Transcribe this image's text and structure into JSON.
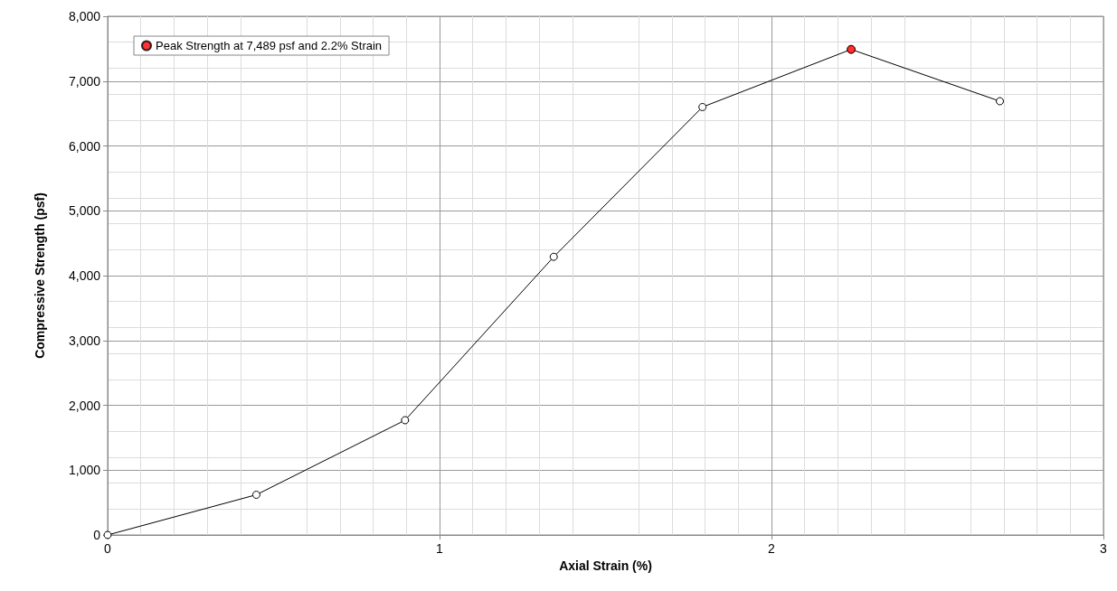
{
  "chart_data": {
    "type": "line",
    "xlabel": "Axial Strain (%)",
    "ylabel": "Compressive Strength (psf)",
    "series": [
      {
        "color": "#000000",
        "x": [
          0,
          0.448,
          0.896,
          1.344,
          1.792,
          2.24,
          2.688
        ],
        "values": [
          0,
          620,
          1770,
          4290,
          6600,
          7489,
          6690
        ]
      },
      {
        "type": "scatter",
        "name": "Peak Strength at 7,489 psf and 2.2% Strain",
        "color": "#ff0000",
        "x": [
          2.24
        ],
        "values": [
          7489
        ]
      }
    ],
    "xlim": [
      0,
      3
    ],
    "xticks": [
      0,
      1,
      2,
      3
    ],
    "ylim": [
      0,
      8000
    ],
    "yticks": [
      0,
      {
        "value": 1000,
        "label": "1,000"
      },
      {
        "value": 2000,
        "label": "2,000"
      },
      {
        "value": 3000,
        "label": "3,000"
      },
      {
        "value": 4000,
        "label": "4,000"
      },
      {
        "value": 5000,
        "label": "5,000"
      },
      {
        "value": 6000,
        "label": "6,000"
      },
      {
        "value": 7000,
        "label": "7,000"
      },
      {
        "value": 8000,
        "label": "8,000"
      }
    ],
    "grid": true,
    "legend": "top left",
    "marker": "circle",
    "line_style": "solid"
  }
}
